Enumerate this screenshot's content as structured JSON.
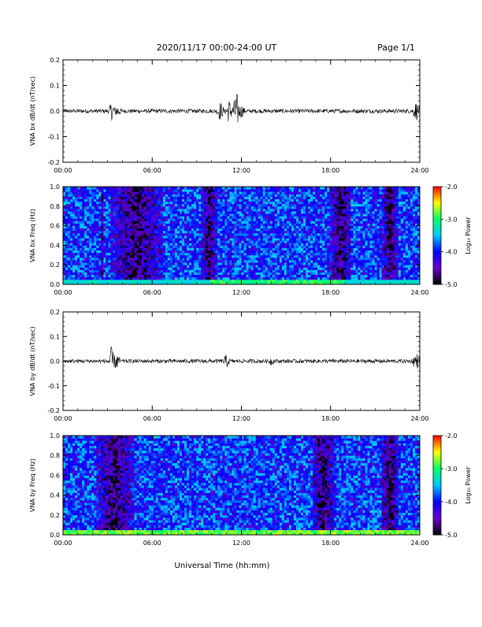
{
  "header": {
    "title": "2020/11/17  00:00-24:00 UT",
    "page": "Page 1/1"
  },
  "xlabel": "Universal Time (hh:mm)",
  "x_ticks": [
    "00:00",
    "06:00",
    "12:00",
    "18:00",
    "24:00"
  ],
  "colorbar": {
    "label": "Log₁₀ Power",
    "ticks": [
      "-2.0",
      "-3.0",
      "-4.0",
      "-5.0"
    ],
    "range": [
      -5.0,
      -2.0
    ],
    "colors": [
      "#000000",
      "#6600cc",
      "#0000ff",
      "#00c8ff",
      "#00ff66",
      "#ffff00",
      "#ff0000"
    ]
  },
  "chart_data": [
    {
      "type": "line",
      "title": "",
      "ylabel": "VNA bx dB/dt (nT/sec)",
      "ylim": [
        -0.2,
        0.2
      ],
      "y_ticks": [
        "0.2",
        "0.1",
        "0.0",
        "-0.1",
        "-0.2"
      ],
      "xlim": [
        "00:00",
        "24:00"
      ],
      "baseline_amplitude": 0.008,
      "bursts": [
        {
          "t": "03:18",
          "amp": 0.04
        },
        {
          "t": "03:40",
          "amp": 0.03
        },
        {
          "t": "10:35",
          "amp": 0.04
        },
        {
          "t": "11:10",
          "amp": 0.05
        },
        {
          "t": "11:40",
          "amp": 0.08
        },
        {
          "t": "12:00",
          "amp": 0.03
        },
        {
          "t": "23:45",
          "amp": 0.04
        }
      ]
    },
    {
      "type": "heatmap",
      "ylabel": "VNA bx Freq (Hz)",
      "ylim": [
        0.0,
        1.0
      ],
      "y_ticks": [
        "1.0",
        "0.8",
        "0.6",
        "0.4",
        "0.2",
        "0.0"
      ],
      "xlim": [
        "00:00",
        "24:00"
      ],
      "value_range": [
        -5.0,
        -2.0
      ],
      "low_freq_enhancement": [
        {
          "t_start": "10:00",
          "t_end": "19:00",
          "level": -3.0
        }
      ],
      "quiet_bands": [
        {
          "t": "02:40",
          "width_hours": 0.2
        },
        {
          "t": "05:00",
          "width_hours": 3.5
        },
        {
          "t": "09:50",
          "width_hours": 1.0
        },
        {
          "t": "18:40",
          "width_hours": 1.5
        },
        {
          "t": "22:00",
          "width_hours": 1.0
        }
      ]
    },
    {
      "type": "line",
      "ylabel": "VNA by dB/dt (nT/sec)",
      "ylim": [
        -0.2,
        0.2
      ],
      "y_ticks": [
        "0.2",
        "0.1",
        "0.0",
        "-0.1",
        "-0.2"
      ],
      "xlim": [
        "00:00",
        "24:00"
      ],
      "baseline_amplitude": 0.008,
      "bursts": [
        {
          "t": "03:15",
          "amp": 0.06
        },
        {
          "t": "03:35",
          "amp": 0.04
        },
        {
          "t": "11:00",
          "amp": 0.03
        },
        {
          "t": "14:00",
          "amp": 0.02
        },
        {
          "t": "23:45",
          "amp": 0.04
        }
      ]
    },
    {
      "type": "heatmap",
      "ylabel": "VNA by Freq (Hz)",
      "ylim": [
        0.0,
        1.0
      ],
      "y_ticks": [
        "1.0",
        "0.8",
        "0.6",
        "0.4",
        "0.2",
        "0.0"
      ],
      "xlim": [
        "00:00",
        "24:00"
      ],
      "value_range": [
        -5.0,
        -2.0
      ],
      "low_freq_enhancement": [
        {
          "t_start": "00:00",
          "t_end": "24:00",
          "level": -2.8
        }
      ],
      "quiet_bands": [
        {
          "t": "03:30",
          "width_hours": 2.5
        },
        {
          "t": "17:30",
          "width_hours": 1.5
        },
        {
          "t": "22:00",
          "width_hours": 1.2
        }
      ]
    }
  ]
}
